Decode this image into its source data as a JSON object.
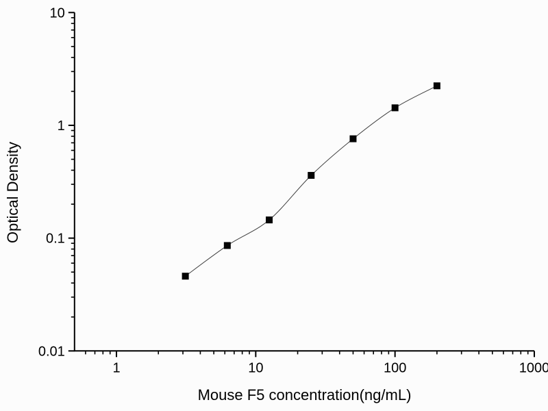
{
  "figure": {
    "background": "#fcfcfc",
    "axis_color": "#000000",
    "curve_color": "#3f3f3f",
    "marker_color": "#050505",
    "text_color": "#000000"
  },
  "chart_data": {
    "type": "scatter",
    "title": "",
    "xlabel": "Mouse F5 concentration(ng/mL)",
    "ylabel": "Optical Density",
    "x_scale": "log",
    "y_scale": "log",
    "xlim": [
      0.5,
      1000
    ],
    "ylim": [
      0.01,
      10
    ],
    "grid": false,
    "legend_position": "none",
    "x_major_ticks": [
      1,
      10,
      100,
      1000
    ],
    "x_major_tick_labels": [
      "1",
      "10",
      "100",
      "1000"
    ],
    "y_major_ticks": [
      0.01,
      0.1,
      1,
      10
    ],
    "y_major_tick_labels": [
      "0.01",
      "0.1",
      "1",
      "10"
    ],
    "series": [
      {
        "marker": "square",
        "fit_curve": true,
        "x": [
          3.125,
          6.25,
          12.5,
          25,
          50,
          100,
          200
        ],
        "y": [
          0.046,
          0.086,
          0.145,
          0.36,
          0.76,
          1.43,
          2.24
        ]
      }
    ]
  }
}
